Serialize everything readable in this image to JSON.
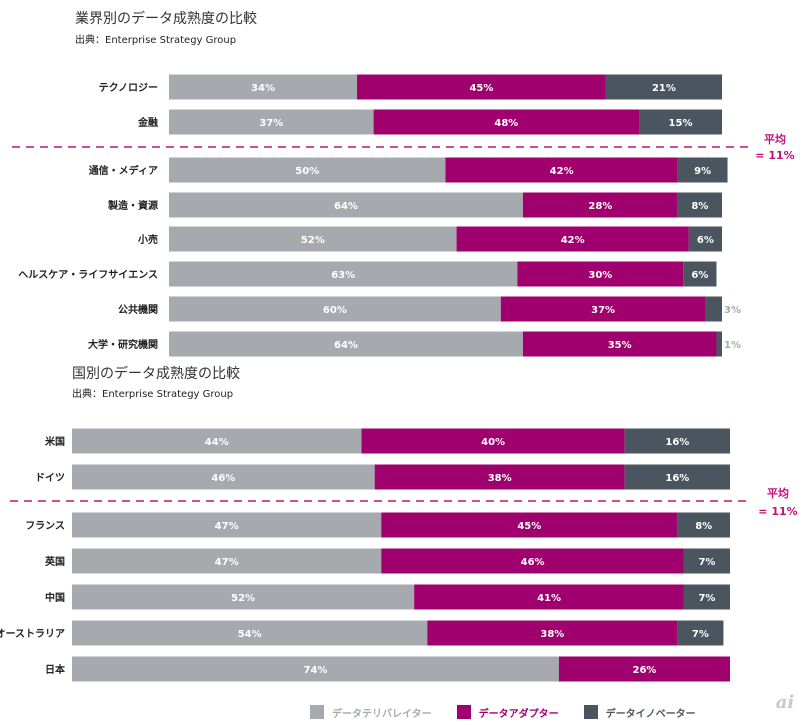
{
  "colors": {
    "laggard": "#a6aaaf",
    "adopter": "#a0006e",
    "innovator": "#4a5560",
    "average_line": "#c0107d",
    "label_text": "#ffffff",
    "outside_label": "#a6aaaf"
  },
  "legend": {
    "laggard": "データテリバレイター",
    "adopter": "データアダプター",
    "innovator": "データイノベーター"
  },
  "watermark": "ai",
  "chart_data": [
    {
      "type": "bar",
      "orientation": "horizontal",
      "stacked": true,
      "percent_stacked": true,
      "title": "業界別のデータ成熟度の比較",
      "source": "出典：Enterprise Strategy Group",
      "categories": [
        "テクノロジー",
        "金融",
        "通信・メディア",
        "製造・資源",
        "小売",
        "ヘルスケア・ライフサイエンス",
        "公共機関",
        "大学・研究機関"
      ],
      "series": [
        {
          "name": "データテリバレイター",
          "values": [
            34,
            37,
            50,
            64,
            52,
            63,
            60,
            64
          ]
        },
        {
          "name": "データアダプター",
          "values": [
            45,
            48,
            42,
            28,
            42,
            30,
            37,
            35
          ]
        },
        {
          "name": "データイノベーター",
          "values": [
            21,
            15,
            9,
            8,
            6,
            6,
            3,
            1
          ]
        }
      ],
      "average_line": {
        "after_category": "金融",
        "label_line1": "平均",
        "label_line2": "= 11%",
        "value": 11
      },
      "xlim": [
        0,
        100
      ]
    },
    {
      "type": "bar",
      "orientation": "horizontal",
      "stacked": true,
      "percent_stacked": true,
      "title": "国別のデータ成熟度の比較",
      "source": "出典：Enterprise Strategy Group",
      "categories": [
        "米国",
        "ドイツ",
        "フランス",
        "英国",
        "中国",
        "オーストラリア",
        "日本"
      ],
      "series": [
        {
          "name": "データテリバレイター",
          "values": [
            44,
            46,
            47,
            47,
            52,
            54,
            74
          ]
        },
        {
          "name": "データアダプター",
          "values": [
            40,
            38,
            45,
            46,
            41,
            38,
            26
          ]
        },
        {
          "name": "データイノベーター",
          "values": [
            16,
            16,
            8,
            7,
            7,
            7,
            0
          ]
        }
      ],
      "average_line": {
        "after_category": "ドイツ",
        "label_line1": "平均",
        "label_line2": "= 11%",
        "value": 11
      },
      "xlim": [
        0,
        100
      ]
    }
  ]
}
